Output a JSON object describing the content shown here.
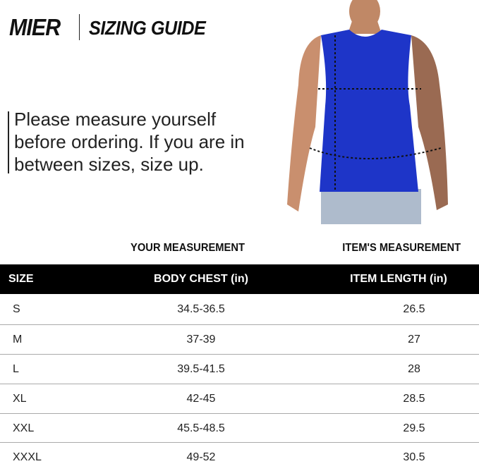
{
  "header": {
    "brand": "MIER",
    "title": "SIZING GUIDE"
  },
  "note": "Please measure yourself before ordering. If you are in between sizes, size up.",
  "photo": {
    "description_icon": "model-tank-top-measurement",
    "shirt_color": "#1e35c8"
  },
  "table": {
    "group_headers": [
      "YOUR MEASUREMENT",
      "ITEM'S MEASUREMENT"
    ],
    "columns": [
      "SIZE",
      "BODY CHEST (in)",
      "ITEM LENGTH (in)"
    ],
    "rows": [
      [
        "S",
        "34.5-36.5",
        "26.5"
      ],
      [
        "M",
        "37-39",
        "27"
      ],
      [
        "L",
        "39.5-41.5",
        "28"
      ],
      [
        "XL",
        "42-45",
        "28.5"
      ],
      [
        "XXL",
        "45.5-48.5",
        "29.5"
      ],
      [
        "XXXL",
        "49-52",
        "30.5"
      ]
    ]
  }
}
